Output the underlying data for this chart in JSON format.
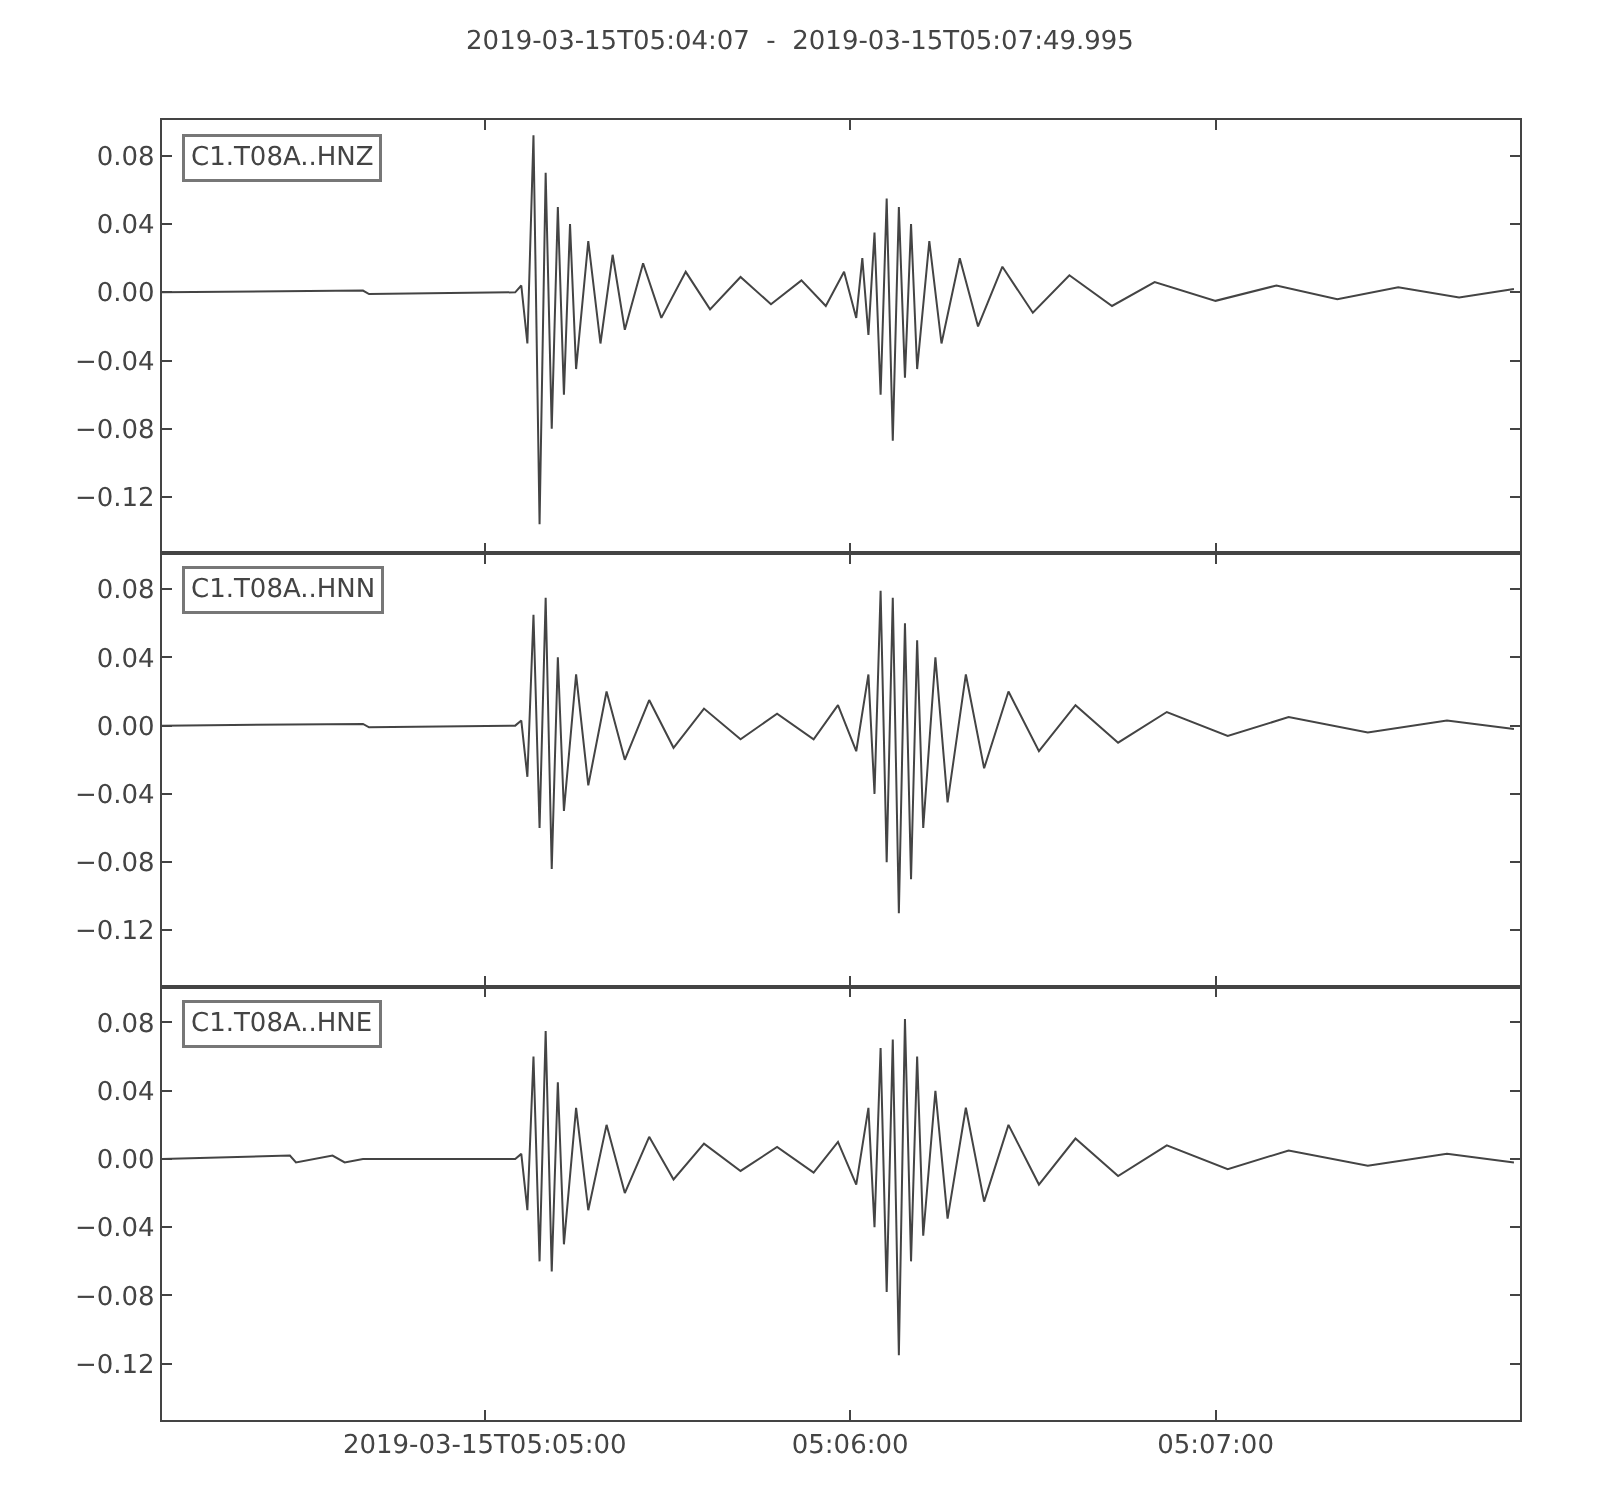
{
  "chart_data": [
    {
      "type": "line",
      "title": "2019-03-15T05:04:07  -  2019-03-15T05:07:49.995",
      "tick_labels": "y",
      "line_style": "solid",
      "xlim": [
        "2019-03-15T05:04:07",
        "2019-03-15T05:07:49.995"
      ],
      "xticks": [
        {
          "value": "2019-03-15T05:05:00",
          "label": null
        },
        {
          "value": "2019-03-15T05:06:00",
          "label": null
        },
        {
          "value": "2019-03-15T05:07:00",
          "label": null
        }
      ],
      "ylim": [
        -0.153,
        0.101
      ],
      "yticks": [
        {
          "value": -0.12,
          "label": "−0.12"
        },
        {
          "value": -0.08,
          "label": "−0.08"
        },
        {
          "value": -0.04,
          "label": "−0.04"
        },
        {
          "value": 0,
          "label": "0.00"
        },
        {
          "value": 0.04,
          "label": "0.04"
        },
        {
          "value": 0.08,
          "label": "0.08"
        }
      ],
      "x": [
        "2019-03-15T05:04:07",
        "2019-03-15T05:04:40",
        "2019-03-15T05:04:41",
        "2019-03-15T05:05:05",
        "2019-03-15T05:05:06",
        "2019-03-15T05:05:07",
        "2019-03-15T05:05:08",
        "2019-03-15T05:05:09",
        "2019-03-15T05:05:10",
        "2019-03-15T05:05:11",
        "2019-03-15T05:05:12",
        "2019-03-15T05:05:13",
        "2019-03-15T05:05:14",
        "2019-03-15T05:05:15",
        "2019-03-15T05:05:17",
        "2019-03-15T05:05:19",
        "2019-03-15T05:05:21",
        "2019-03-15T05:05:23",
        "2019-03-15T05:05:26",
        "2019-03-15T05:05:29",
        "2019-03-15T05:05:33",
        "2019-03-15T05:05:37",
        "2019-03-15T05:05:42",
        "2019-03-15T05:05:47",
        "2019-03-15T05:05:52",
        "2019-03-15T05:05:56",
        "2019-03-15T05:05:59",
        "2019-03-15T05:06:01",
        "2019-03-15T05:06:02",
        "2019-03-15T05:06:03",
        "2019-03-15T05:06:04",
        "2019-03-15T05:06:05",
        "2019-03-15T05:06:06",
        "2019-03-15T05:06:07",
        "2019-03-15T05:06:08",
        "2019-03-15T05:06:09",
        "2019-03-15T05:06:10",
        "2019-03-15T05:06:11",
        "2019-03-15T05:06:13",
        "2019-03-15T05:06:15",
        "2019-03-15T05:06:18",
        "2019-03-15T05:06:21",
        "2019-03-15T05:06:25",
        "2019-03-15T05:06:30",
        "2019-03-15T05:06:36",
        "2019-03-15T05:06:43",
        "2019-03-15T05:06:50",
        "2019-03-15T05:07:00",
        "2019-03-15T05:07:10",
        "2019-03-15T05:07:20",
        "2019-03-15T05:07:30",
        "2019-03-15T05:07:40",
        "2019-03-15T05:07:49"
      ],
      "series": [
        {
          "name": "C1.T08A..HNZ",
          "color": "#444444",
          "values": [
            0,
            0.001,
            -0.001,
            0,
            0.004,
            -0.03,
            0.092,
            -0.136,
            0.07,
            -0.08,
            0.05,
            -0.06,
            0.04,
            -0.045,
            0.03,
            -0.03,
            0.022,
            -0.022,
            0.017,
            -0.015,
            0.012,
            -0.01,
            0.009,
            -0.007,
            0.007,
            -0.008,
            0.012,
            -0.015,
            0.02,
            -0.025,
            0.035,
            -0.06,
            0.055,
            -0.087,
            0.05,
            -0.05,
            0.04,
            -0.045,
            0.03,
            -0.03,
            0.02,
            -0.02,
            0.015,
            -0.012,
            0.01,
            -0.008,
            0.006,
            -0.005,
            0.004,
            -0.004,
            0.003,
            -0.003,
            0.002
          ]
        }
      ]
    },
    {
      "type": "line",
      "tick_labels": "y",
      "line_style": "solid",
      "xlim": [
        "2019-03-15T05:04:07",
        "2019-03-15T05:07:49.995"
      ],
      "xticks": [
        {
          "value": "2019-03-15T05:05:00",
          "label": null
        },
        {
          "value": "2019-03-15T05:06:00",
          "label": null
        },
        {
          "value": "2019-03-15T05:07:00",
          "label": null
        }
      ],
      "ylim": [
        -0.153,
        0.101
      ],
      "yticks": [
        {
          "value": -0.12,
          "label": "−0.12"
        },
        {
          "value": -0.08,
          "label": "−0.08"
        },
        {
          "value": -0.04,
          "label": "−0.04"
        },
        {
          "value": 0,
          "label": "0.00"
        },
        {
          "value": 0.04,
          "label": "0.04"
        },
        {
          "value": 0.08,
          "label": "0.08"
        }
      ],
      "x": [
        "2019-03-15T05:04:07",
        "2019-03-15T05:04:40",
        "2019-03-15T05:04:41",
        "2019-03-15T05:05:05",
        "2019-03-15T05:05:06",
        "2019-03-15T05:05:07",
        "2019-03-15T05:05:08",
        "2019-03-15T05:05:09",
        "2019-03-15T05:05:10",
        "2019-03-15T05:05:11",
        "2019-03-15T05:05:12",
        "2019-03-15T05:05:13",
        "2019-03-15T05:05:15",
        "2019-03-15T05:05:17",
        "2019-03-15T05:05:20",
        "2019-03-15T05:05:23",
        "2019-03-15T05:05:27",
        "2019-03-15T05:05:31",
        "2019-03-15T05:05:36",
        "2019-03-15T05:05:42",
        "2019-03-15T05:05:48",
        "2019-03-15T05:05:54",
        "2019-03-15T05:05:58",
        "2019-03-15T05:06:01",
        "2019-03-15T05:06:03",
        "2019-03-15T05:06:04",
        "2019-03-15T05:06:05",
        "2019-03-15T05:06:06",
        "2019-03-15T05:06:07",
        "2019-03-15T05:06:08",
        "2019-03-15T05:06:09",
        "2019-03-15T05:06:10",
        "2019-03-15T05:06:11",
        "2019-03-15T05:06:12",
        "2019-03-15T05:06:14",
        "2019-03-15T05:06:16",
        "2019-03-15T05:06:19",
        "2019-03-15T05:06:22",
        "2019-03-15T05:06:26",
        "2019-03-15T05:06:31",
        "2019-03-15T05:06:37",
        "2019-03-15T05:06:44",
        "2019-03-15T05:06:52",
        "2019-03-15T05:07:02",
        "2019-03-15T05:07:12",
        "2019-03-15T05:07:25",
        "2019-03-15T05:07:38",
        "2019-03-15T05:07:49"
      ],
      "series": [
        {
          "name": "C1.T08A..HNN",
          "color": "#444444",
          "values": [
            0,
            0.001,
            -0.001,
            0,
            0.003,
            -0.03,
            0.065,
            -0.06,
            0.075,
            -0.084,
            0.04,
            -0.05,
            0.03,
            -0.035,
            0.02,
            -0.02,
            0.015,
            -0.013,
            0.01,
            -0.008,
            0.007,
            -0.008,
            0.012,
            -0.015,
            0.03,
            -0.04,
            0.079,
            -0.08,
            0.075,
            -0.11,
            0.06,
            -0.09,
            0.05,
            -0.06,
            0.04,
            -0.045,
            0.03,
            -0.025,
            0.02,
            -0.015,
            0.012,
            -0.01,
            0.008,
            -0.006,
            0.005,
            -0.004,
            0.003,
            -0.002
          ]
        }
      ]
    },
    {
      "type": "line",
      "line_style": "solid",
      "xlim": [
        "2019-03-15T05:04:07",
        "2019-03-15T05:07:49.995"
      ],
      "xticks": [
        {
          "value": "2019-03-15T05:05:00",
          "label": "2019-03-15T05:05:00"
        },
        {
          "value": "2019-03-15T05:06:00",
          "label": "05:06:00"
        },
        {
          "value": "2019-03-15T05:07:00",
          "label": "05:07:00"
        }
      ],
      "ylim": [
        -0.153,
        0.101
      ],
      "yticks": [
        {
          "value": -0.12,
          "label": "−0.12"
        },
        {
          "value": -0.08,
          "label": "−0.08"
        },
        {
          "value": -0.04,
          "label": "−0.04"
        },
        {
          "value": 0,
          "label": "0.00"
        },
        {
          "value": 0.04,
          "label": "0.04"
        },
        {
          "value": 0.08,
          "label": "0.08"
        }
      ],
      "x": [
        "2019-03-15T05:04:07",
        "2019-03-15T05:04:28",
        "2019-03-15T05:04:29",
        "2019-03-15T05:04:35",
        "2019-03-15T05:04:37",
        "2019-03-15T05:04:40",
        "2019-03-15T05:05:05",
        "2019-03-15T05:05:06",
        "2019-03-15T05:05:07",
        "2019-03-15T05:05:08",
        "2019-03-15T05:05:09",
        "2019-03-15T05:05:10",
        "2019-03-15T05:05:11",
        "2019-03-15T05:05:12",
        "2019-03-15T05:05:13",
        "2019-03-15T05:05:15",
        "2019-03-15T05:05:17",
        "2019-03-15T05:05:20",
        "2019-03-15T05:05:23",
        "2019-03-15T05:05:27",
        "2019-03-15T05:05:31",
        "2019-03-15T05:05:36",
        "2019-03-15T05:05:42",
        "2019-03-15T05:05:48",
        "2019-03-15T05:05:54",
        "2019-03-15T05:05:58",
        "2019-03-15T05:06:01",
        "2019-03-15T05:06:03",
        "2019-03-15T05:06:04",
        "2019-03-15T05:06:05",
        "2019-03-15T05:06:06",
        "2019-03-15T05:06:07",
        "2019-03-15T05:06:08",
        "2019-03-15T05:06:09",
        "2019-03-15T05:06:10",
        "2019-03-15T05:06:11",
        "2019-03-15T05:06:12",
        "2019-03-15T05:06:14",
        "2019-03-15T05:06:16",
        "2019-03-15T05:06:19",
        "2019-03-15T05:06:22",
        "2019-03-15T05:06:26",
        "2019-03-15T05:06:31",
        "2019-03-15T05:06:37",
        "2019-03-15T05:06:44",
        "2019-03-15T05:06:52",
        "2019-03-15T05:07:02",
        "2019-03-15T05:07:12",
        "2019-03-15T05:07:25",
        "2019-03-15T05:07:38",
        "2019-03-15T05:07:49"
      ],
      "series": [
        {
          "name": "C1.T08A..HNE",
          "color": "#444444",
          "values": [
            0,
            0.002,
            -0.002,
            0.002,
            -0.002,
            0,
            0,
            0.003,
            -0.03,
            0.06,
            -0.06,
            0.075,
            -0.066,
            0.045,
            -0.05,
            0.03,
            -0.03,
            0.02,
            -0.02,
            0.013,
            -0.012,
            0.009,
            -0.007,
            0.007,
            -0.008,
            0.01,
            -0.015,
            0.03,
            -0.04,
            0.065,
            -0.078,
            0.07,
            -0.115,
            0.082,
            -0.06,
            0.06,
            -0.045,
            0.04,
            -0.035,
            0.03,
            -0.025,
            0.02,
            -0.015,
            0.012,
            -0.01,
            0.008,
            -0.006,
            0.005,
            -0.004,
            0.003,
            -0.002
          ]
        }
      ]
    }
  ]
}
